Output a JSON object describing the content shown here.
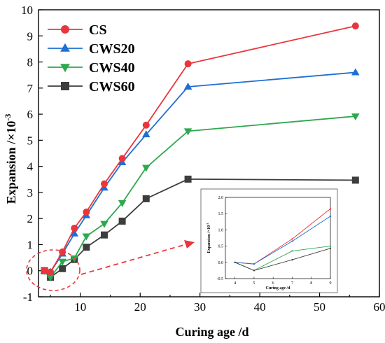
{
  "chart_data": [
    {
      "type": "line",
      "xlabel": "Curing age /d",
      "ylabel_prefix": "Expansion /×10",
      "ylabel_exponent": "-3",
      "xlim": [
        3,
        60
      ],
      "ylim": [
        -1,
        10
      ],
      "xticks": [
        "10",
        "20",
        "30",
        "40",
        "50",
        "60"
      ],
      "yticks": [
        "-1",
        "0",
        "1",
        "2",
        "3",
        "4",
        "5",
        "6",
        "7",
        "8",
        "9",
        "10"
      ],
      "grid": false,
      "legend_position": "top-left",
      "series": [
        {
          "name": "CS",
          "color": "#e8363c",
          "marker": "circle",
          "x": [
            4,
            5,
            7,
            9,
            11,
            14,
            17,
            21,
            28,
            56
          ],
          "y": [
            0.0,
            -0.05,
            0.72,
            1.63,
            2.25,
            3.33,
            4.3,
            5.58,
            7.93,
            9.38
          ]
        },
        {
          "name": "CWS20",
          "color": "#1f6fd1",
          "marker": "triangle-up",
          "x": [
            4,
            5,
            7,
            9,
            11,
            14,
            17,
            21,
            28,
            56
          ],
          "y": [
            0.0,
            -0.05,
            0.65,
            1.42,
            2.12,
            3.18,
            4.15,
            5.22,
            7.05,
            7.6
          ]
        },
        {
          "name": "CWS40",
          "color": "#2ea84e",
          "marker": "triangle-down",
          "x": [
            4,
            5,
            7,
            9,
            11,
            14,
            17,
            21,
            28,
            56
          ],
          "y": [
            0.0,
            -0.25,
            0.35,
            0.48,
            1.32,
            1.8,
            2.6,
            3.95,
            5.35,
            5.92
          ]
        },
        {
          "name": "CWS60",
          "color": "#3d3d3d",
          "marker": "square",
          "x": [
            4,
            5,
            7,
            9,
            11,
            14,
            17,
            21,
            28,
            56
          ],
          "y": [
            0.0,
            -0.25,
            0.08,
            0.43,
            0.9,
            1.37,
            1.9,
            2.76,
            3.51,
            3.47
          ]
        }
      ]
    },
    {
      "type": "line",
      "role": "inset",
      "xlabel": "Curing age /d",
      "ylabel_prefix": "Expansion /×10",
      "ylabel_exponent": "-3",
      "xlim": [
        3.5,
        9
      ],
      "ylim": [
        -0.5,
        2.0
      ],
      "xticks": [
        "4",
        "5",
        "6",
        "7",
        "8",
        "9"
      ],
      "yticks": [
        "-0.5",
        "0.0",
        "0.5",
        "1.0",
        "1.5",
        "2.0"
      ],
      "series": [
        {
          "name": "CS",
          "color": "#e8363c",
          "x": [
            4,
            5,
            7,
            9
          ],
          "y": [
            0.0,
            -0.05,
            0.72,
            1.65
          ]
        },
        {
          "name": "CWS20",
          "color": "#1f6fd1",
          "x": [
            4,
            5,
            7,
            9
          ],
          "y": [
            0.0,
            -0.05,
            0.65,
            1.42
          ]
        },
        {
          "name": "CWS40",
          "color": "#2ea84e",
          "x": [
            4,
            5,
            7,
            9
          ],
          "y": [
            0.0,
            -0.25,
            0.35,
            0.5
          ]
        },
        {
          "name": "CWS60",
          "color": "#3d3d3d",
          "x": [
            4,
            5,
            7,
            9
          ],
          "y": [
            0.0,
            -0.25,
            0.08,
            0.43
          ]
        }
      ]
    }
  ],
  "annotation": {
    "circle_color": "#e8363c",
    "arrow_color": "#e8363c"
  }
}
